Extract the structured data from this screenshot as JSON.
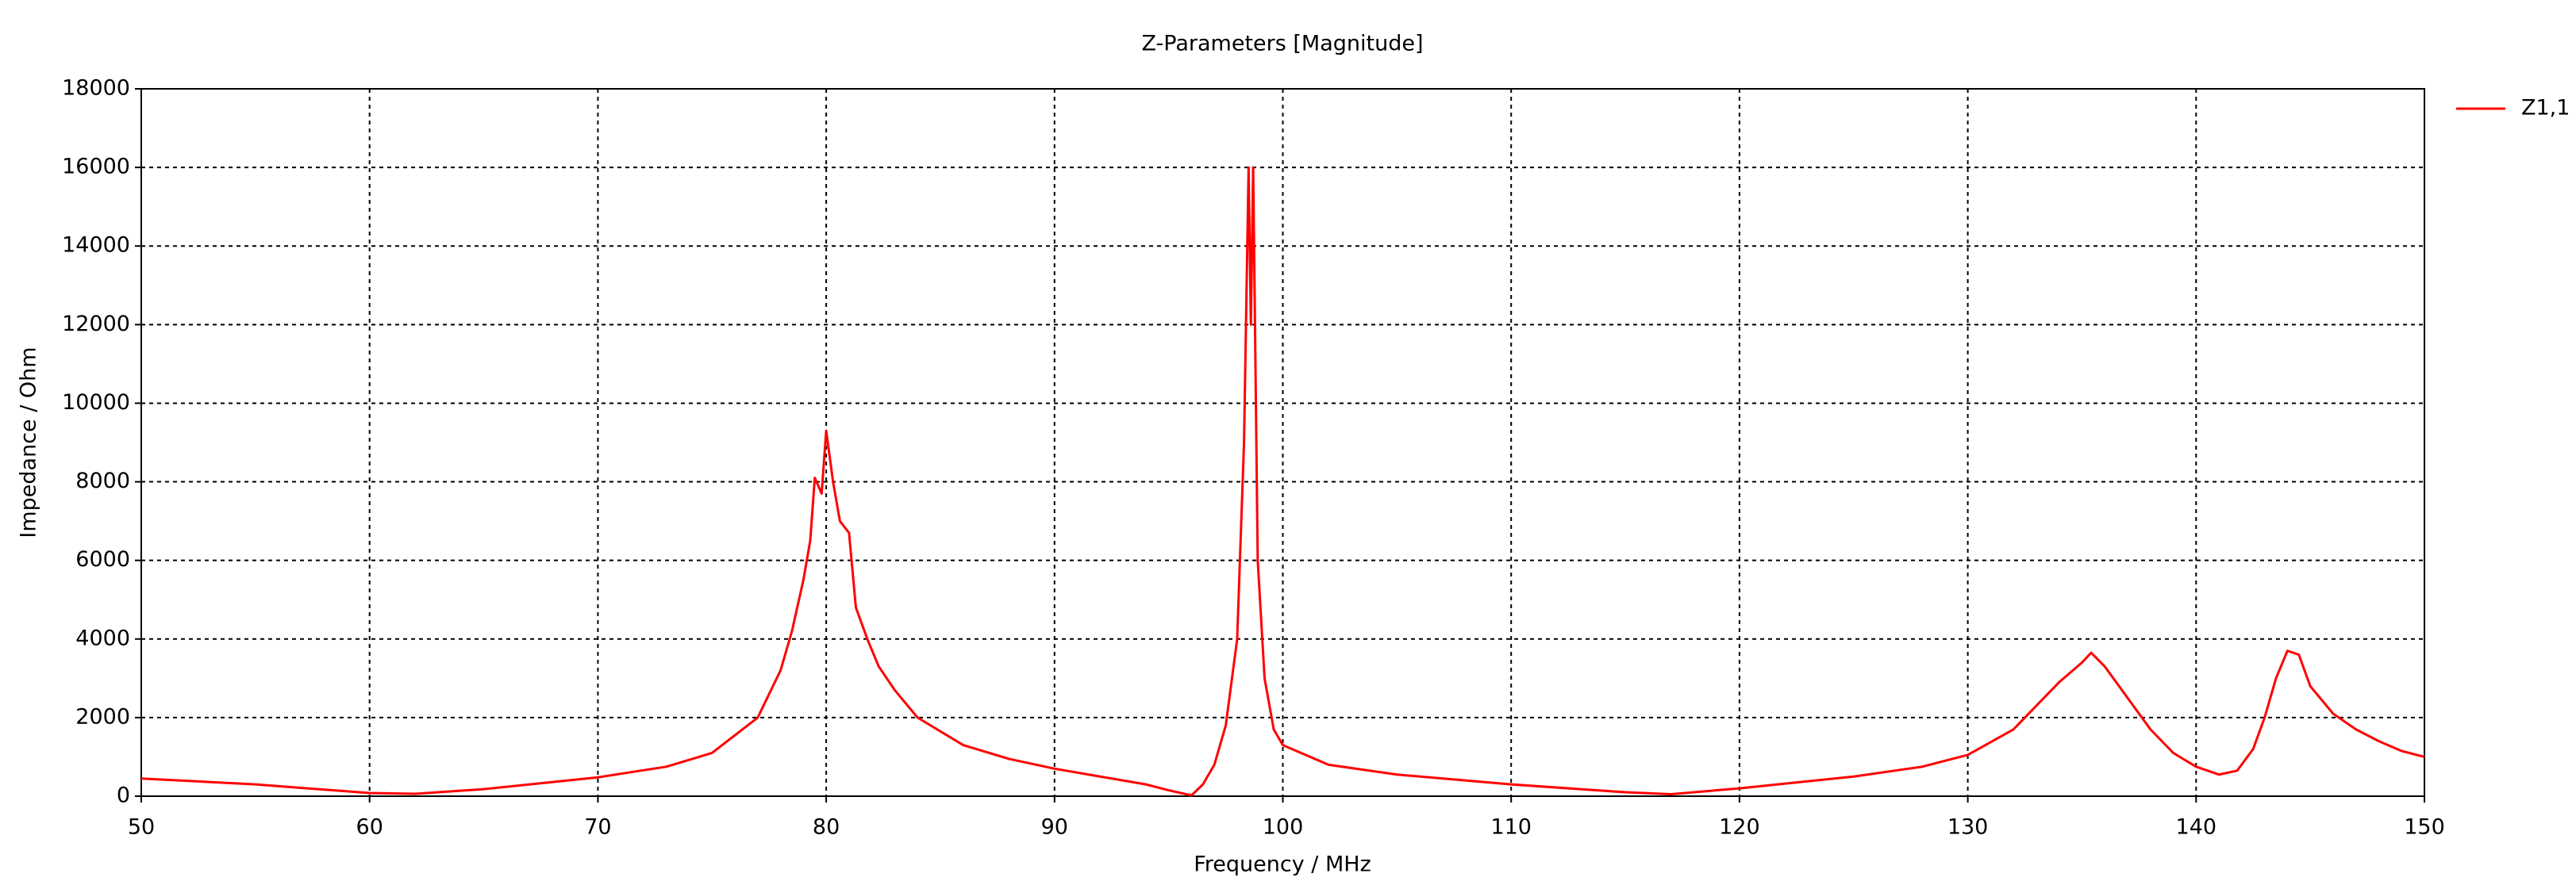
{
  "chart_data": {
    "type": "line",
    "title": "Z-Parameters [Magnitude]",
    "x_label": "Frequency / MHz",
    "y_label": "Impedance / Ohm",
    "x": [
      50,
      55,
      60,
      62,
      65,
      70,
      73,
      75,
      77,
      78,
      78.5,
      79,
      79.3,
      79.5,
      79.8,
      80,
      80.3,
      80.6,
      81,
      81.3,
      81.8,
      82.3,
      83,
      84,
      86,
      88,
      90,
      92,
      94,
      95,
      96,
      96.5,
      97,
      97.5,
      98,
      98.3,
      98.5,
      98.6,
      98.7,
      98.9,
      99.2,
      99.6,
      100,
      102,
      105,
      110,
      115,
      117,
      120,
      125,
      128,
      130,
      132,
      134,
      135,
      135.4,
      136,
      137,
      138,
      139,
      140,
      141,
      141.8,
      142.5,
      143,
      143.5,
      144,
      144.5,
      145,
      146,
      147,
      148,
      149,
      150
    ],
    "series": [
      {
        "name": "Z1,1",
        "color": "#ff0000",
        "values": [
          450,
          300,
          80,
          60,
          180,
          480,
          750,
          1100,
          2000,
          3200,
          4200,
          5500,
          6500,
          8100,
          7700,
          9300,
          8000,
          7000,
          6700,
          4800,
          4000,
          3300,
          2700,
          2000,
          1300,
          950,
          700,
          500,
          300,
          150,
          20,
          300,
          800,
          1800,
          4000,
          9000,
          16000,
          12000,
          16000,
          6000,
          3000,
          1700,
          1300,
          800,
          550,
          300,
          100,
          50,
          200,
          500,
          750,
          1050,
          1700,
          2900,
          3400,
          3650,
          3300,
          2500,
          1700,
          1100,
          750,
          550,
          650,
          1200,
          2000,
          3000,
          3700,
          3600,
          2800,
          2100,
          1700,
          1400,
          1150,
          1000
        ]
      }
    ],
    "xlim": [
      50,
      150
    ],
    "xticks": [
      50,
      60,
      70,
      80,
      90,
      100,
      110,
      120,
      130,
      140,
      150
    ],
    "ylim": [
      0,
      18000
    ],
    "yticks": [
      0,
      2000,
      4000,
      6000,
      8000,
      10000,
      12000,
      14000,
      16000,
      18000
    ],
    "grid": true,
    "legend": "right"
  }
}
